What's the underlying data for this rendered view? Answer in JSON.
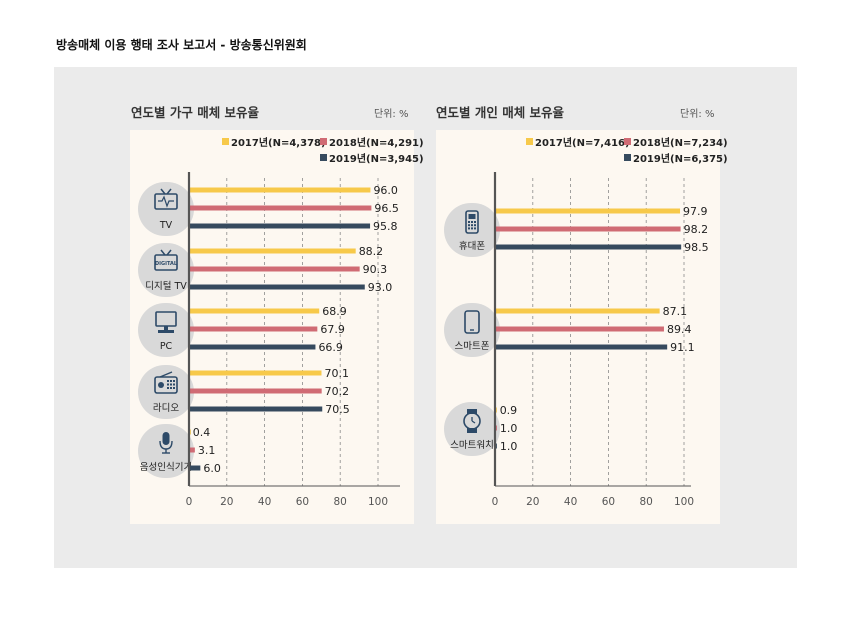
{
  "header": {
    "title": "방송매체 이용 행태 조사 보고서 - 방송통신위원회"
  },
  "colors": {
    "2017": "#f7c94a",
    "2018": "#d06b74",
    "2019": "#364a5e",
    "icon": "#2d4a68",
    "icon_bg": "#d9d9d9",
    "plot_bg": "#fdf8f1"
  },
  "chart_data": [
    {
      "type": "bar",
      "orientation": "horizontal",
      "title": "연도별 가구 매체 보유율",
      "unit": "단위: %",
      "categories": [
        "TV",
        "디지털 TV",
        "PC",
        "라디오",
        "음성인식기기"
      ],
      "icons": [
        "tv-icon",
        "digital-tv-icon",
        "pc-icon",
        "radio-icon",
        "microphone-icon"
      ],
      "icon_texts": [
        "",
        "DIGITAL",
        "",
        "",
        ""
      ],
      "series": [
        {
          "name": "2017년(N=4,378)",
          "color": "#f7c94a",
          "values": [
            96.0,
            88.2,
            68.9,
            70.1,
            0.4
          ],
          "labels": [
            "96.0",
            "88.2",
            "68.9",
            "70.1",
            "0.4"
          ]
        },
        {
          "name": "2018년(N=4,291)",
          "color": "#d06b74",
          "values": [
            96.5,
            90.3,
            67.9,
            70.2,
            3.1
          ],
          "labels": [
            "96.5",
            "90.3",
            "67.9",
            "70.2",
            "3.1"
          ]
        },
        {
          "name": "2019년(N=3,945)",
          "color": "#364a5e",
          "values": [
            95.8,
            93.0,
            66.9,
            70.5,
            6.0
          ],
          "labels": [
            "95.8",
            "93.0",
            "66.9",
            "70.5",
            "6.0"
          ]
        }
      ],
      "xlim": [
        0,
        100
      ],
      "xticks": [
        "0",
        "20",
        "40",
        "60",
        "80",
        "100"
      ],
      "grid": true,
      "legend": "top-right"
    },
    {
      "type": "bar",
      "orientation": "horizontal",
      "title": "연도별 개인 매체 보유율",
      "unit": "단위: %",
      "categories": [
        "휴대폰",
        "스마트폰",
        "스마트워치"
      ],
      "icons": [
        "mobile-phone-icon",
        "smartphone-icon",
        "smartwatch-icon"
      ],
      "icon_texts": [
        "",
        "",
        ""
      ],
      "series": [
        {
          "name": "2017년(N=7,416)",
          "color": "#f7c94a",
          "values": [
            97.9,
            87.1,
            0.9
          ],
          "labels": [
            "97.9",
            "87.1",
            "0.9"
          ]
        },
        {
          "name": "2018년(N=7,234)",
          "color": "#d06b74",
          "values": [
            98.2,
            89.4,
            1.0
          ],
          "labels": [
            "98.2",
            "89.4",
            "1.0"
          ]
        },
        {
          "name": "2019년(N=6,375)",
          "color": "#364a5e",
          "values": [
            98.5,
            91.1,
            1.0
          ],
          "labels": [
            "98.5",
            "91.1",
            "1.0"
          ]
        }
      ],
      "xlim": [
        0,
        100
      ],
      "xticks": [
        "0",
        "20",
        "40",
        "60",
        "80",
        "100"
      ],
      "grid": true,
      "legend": "top-right"
    }
  ]
}
